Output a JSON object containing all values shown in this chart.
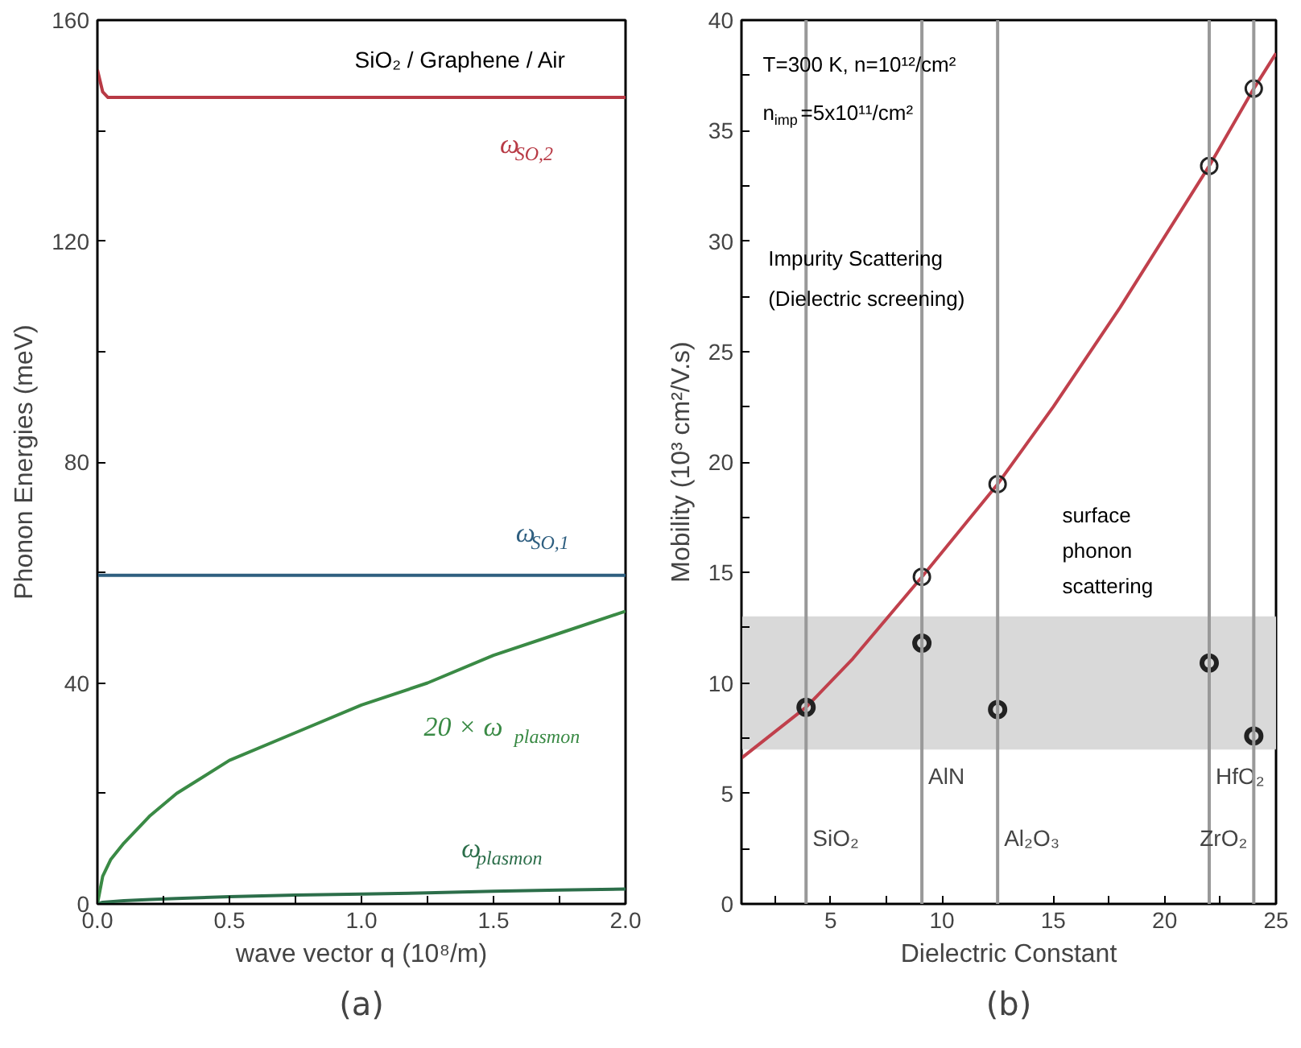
{
  "chart_data": [
    {
      "type": "line",
      "title": "(a)",
      "xlabel": "wave vector q (10⁸/m)",
      "ylabel": "Phonon Energies (meV)",
      "xlim": [
        0,
        2.0
      ],
      "ylim": [
        0,
        160
      ],
      "xticks": [
        {
          "value": 0,
          "label": "0.0"
        },
        {
          "value": 0.25,
          "label": null
        },
        {
          "value": 0.5,
          "label": "0.5"
        },
        {
          "value": 0.75,
          "label": null
        },
        {
          "value": 1,
          "label": "1.0"
        },
        {
          "value": 1.25,
          "label": null
        },
        {
          "value": 1.5,
          "label": "1.5"
        },
        {
          "value": 1.75,
          "label": null
        },
        {
          "value": 2,
          "label": "2.0"
        }
      ],
      "yticks": [
        0,
        {
          "value": 20,
          "label": null
        },
        40,
        {
          "value": 60,
          "label": null
        },
        80,
        {
          "value": 100,
          "label": null
        },
        120,
        {
          "value": 140,
          "label": null
        },
        160
      ],
      "grid": false,
      "legend": false,
      "marker": "none",
      "line_style": "solid",
      "annotations": [
        "SiO₂ / Graphene / Air"
      ],
      "series": [
        {
          "name": "ω$_{SO,2}$",
          "color": "#b83a45",
          "x": [
            0,
            0.01,
            0.02,
            0.04,
            0.06,
            0.1,
            0.5,
            1,
            1.5,
            2
          ],
          "values": [
            151,
            149,
            147,
            146,
            146,
            146,
            146,
            146,
            146,
            146
          ]
        },
        {
          "name": "ω$_{SO,1}$",
          "color": "#2f5f80",
          "x": [
            0,
            0.5,
            1,
            1.5,
            2
          ],
          "values": [
            59.5,
            59.5,
            59.5,
            59.5,
            59.5
          ]
        },
        {
          "name": "20 × ω$_{plasmon}$",
          "color": "#3a8a45",
          "x": [
            0,
            0.02,
            0.05,
            0.1,
            0.2,
            0.3,
            0.5,
            0.75,
            1,
            1.25,
            1.5,
            1.75,
            2
          ],
          "values": [
            0,
            5,
            8,
            11,
            16,
            20,
            26,
            31,
            36,
            40,
            45,
            49,
            53
          ]
        },
        {
          "name": "ω$_{plasmon}$",
          "color": "#2c6e4a",
          "x": [
            0,
            0.02,
            0.05,
            0.1,
            0.2,
            0.3,
            0.5,
            0.75,
            1,
            1.25,
            1.5,
            1.75,
            2
          ],
          "values": [
            0,
            0.3,
            0.4,
            0.6,
            0.8,
            1,
            1.3,
            1.6,
            1.8,
            2,
            2.3,
            2.5,
            2.7
          ]
        }
      ]
    },
    {
      "type": "line",
      "title": "(b)",
      "xlabel": "Dielectric Constant",
      "ylabel": "Mobility (10³ cm²/V.s)",
      "xlim": [
        1,
        25
      ],
      "ylim": [
        0,
        40
      ],
      "xticks": [
        {
          "value": 2.5,
          "label": null
        },
        5,
        {
          "value": 7.5,
          "label": null
        },
        10,
        {
          "value": 12.5,
          "label": null
        },
        15,
        {
          "value": 17.5,
          "label": null
        },
        20,
        {
          "value": 22.5,
          "label": null
        },
        25
      ],
      "yticks": [
        0,
        {
          "value": 2.5,
          "label": null
        },
        5,
        {
          "value": 7.5,
          "label": null
        },
        10,
        {
          "value": 12.5,
          "label": null
        },
        15,
        {
          "value": 17.5,
          "label": null
        },
        20,
        {
          "value": 22.5,
          "label": null
        },
        25,
        {
          "value": 27.5,
          "label": null
        },
        30,
        {
          "value": 32.5,
          "label": null
        },
        35,
        {
          "value": 37.5,
          "label": null
        },
        40
      ],
      "grid": false,
      "legend": false,
      "annotations": [
        "T=300 K, n=10¹²/cm²",
        "n$_{imp}$=5x10¹¹/cm²",
        "Impurity Scattering",
        "(Dielectric screening)",
        "surface",
        "phonon",
        "scattering"
      ],
      "ref_lines": [
        {
          "axis": "x",
          "value": 3.9,
          "label": "SiO₂",
          "color": "#999999"
        },
        {
          "axis": "x",
          "value": 9.1,
          "label": "AlN",
          "color": "#999999"
        },
        {
          "axis": "x",
          "value": 12.5,
          "label": "Al₂O₃",
          "color": "#999999"
        },
        {
          "axis": "x",
          "value": 22,
          "label": "HfO₂",
          "color": "#999999"
        },
        {
          "axis": "x",
          "value": 24,
          "label": "ZrO₂",
          "color": "#999999"
        }
      ],
      "bands": [
        {
          "axis": "y",
          "from": 7,
          "to": 13,
          "color": "#d9d9d9"
        }
      ],
      "series": [
        {
          "type": "line",
          "color": "#c0404c",
          "x": [
            1,
            3.9,
            6,
            9.1,
            12.5,
            15,
            18,
            22,
            24,
            25
          ],
          "values": [
            6.6,
            8.9,
            11.1,
            14.8,
            19,
            22.5,
            27,
            33.4,
            36.9,
            38.5
          ]
        },
        {
          "type": "scatter",
          "marker": "circle",
          "color": "#222222",
          "x": [
            9.1,
            12.5,
            22,
            24
          ],
          "values": [
            14.8,
            19,
            33.4,
            36.9
          ]
        },
        {
          "type": "scatter",
          "marker": "circle",
          "color": "#222222",
          "x": [
            3.9,
            9.1,
            12.5,
            22,
            24
          ],
          "values": [
            8.9,
            11.8,
            8.8,
            10.9,
            7.6
          ]
        }
      ]
    }
  ]
}
